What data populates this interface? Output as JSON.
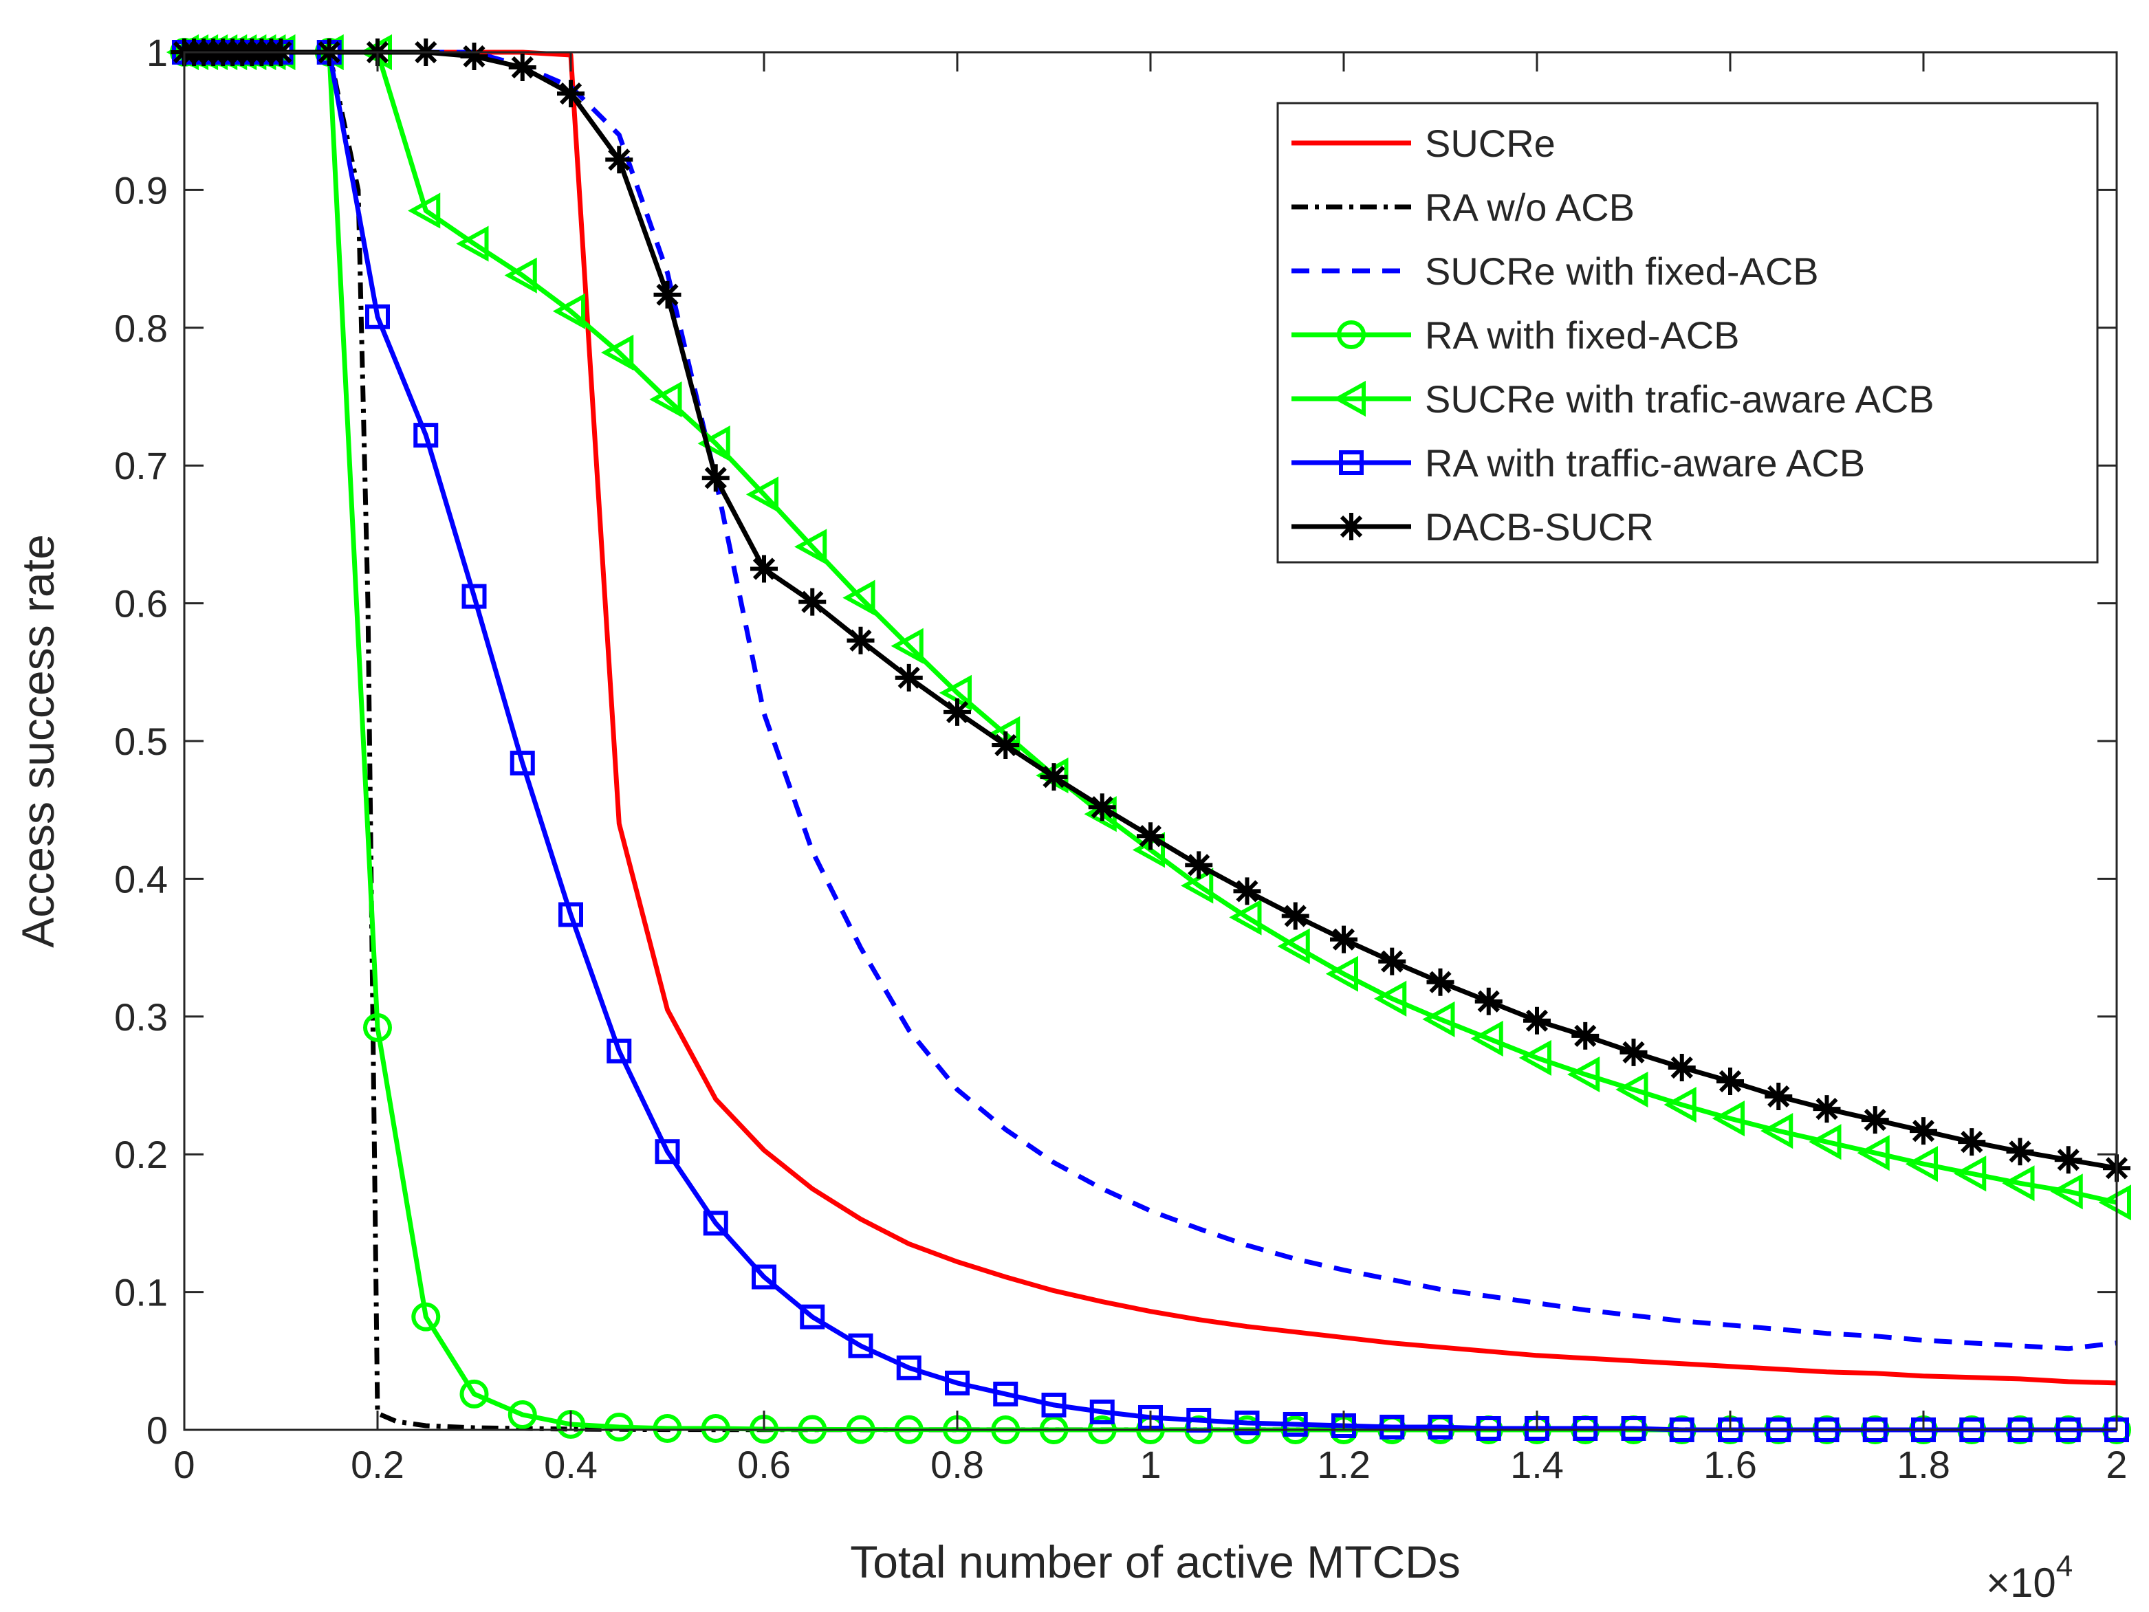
{
  "chart_data": {
    "type": "line",
    "title": "",
    "xlabel": "Total number of active MTCDs",
    "ylabel": "Access success rate",
    "x_exponent_label": "×10",
    "x_exponent": "4",
    "xlim": [
      0,
      2
    ],
    "ylim": [
      0,
      1
    ],
    "xticks": [
      0,
      0.2,
      0.4,
      0.6,
      0.8,
      1,
      1.2,
      1.4,
      1.6,
      1.8,
      2
    ],
    "xtick_labels": [
      "0",
      "0.2",
      "0.4",
      "0.6",
      "0.8",
      "1",
      "1.2",
      "1.4",
      "1.6",
      "1.8",
      "2"
    ],
    "yticks": [
      0,
      0.1,
      0.2,
      0.3,
      0.4,
      0.5,
      0.6,
      0.7,
      0.8,
      0.9,
      1
    ],
    "ytick_labels": [
      "0",
      "0.1",
      "0.2",
      "0.3",
      "0.4",
      "0.5",
      "0.6",
      "0.7",
      "0.8",
      "0.9",
      "1"
    ],
    "grid": false,
    "legend_position": "top-right",
    "series": [
      {
        "name": "SUCRe",
        "color": "#ff0000",
        "dash": "solid",
        "marker": "none",
        "x": [
          0,
          0.05,
          0.1,
          0.15,
          0.2,
          0.25,
          0.3,
          0.35,
          0.4,
          0.45,
          0.5,
          0.55,
          0.6,
          0.65,
          0.7,
          0.75,
          0.8,
          0.85,
          0.9,
          0.95,
          1.0,
          1.05,
          1.1,
          1.15,
          1.2,
          1.25,
          1.3,
          1.35,
          1.4,
          1.45,
          1.5,
          1.55,
          1.6,
          1.65,
          1.7,
          1.75,
          1.8,
          1.85,
          1.9,
          1.95,
          2.0
        ],
        "y": [
          1,
          1,
          1,
          1,
          1,
          1,
          1,
          1,
          0.998,
          0.44,
          0.305,
          0.24,
          0.203,
          0.175,
          0.153,
          0.135,
          0.122,
          0.111,
          0.101,
          0.093,
          0.086,
          0.08,
          0.075,
          0.071,
          0.067,
          0.063,
          0.06,
          0.057,
          0.054,
          0.052,
          0.05,
          0.048,
          0.046,
          0.044,
          0.042,
          0.041,
          0.039,
          0.038,
          0.037,
          0.035,
          0.034
        ]
      },
      {
        "name": "RA w/o ACB",
        "color": "#000000",
        "dash": "dashdot",
        "marker": "none",
        "x": [
          0,
          0.05,
          0.1,
          0.15,
          0.18,
          0.19,
          0.2,
          0.22,
          0.25,
          0.3,
          0.35,
          0.4,
          0.5,
          0.6,
          2.0
        ],
        "y": [
          1,
          1,
          1,
          1,
          0.9,
          0.6,
          0.012,
          0.006,
          0.003,
          0.0015,
          0.001,
          0.0005,
          0.0002,
          0.0001,
          0
        ]
      },
      {
        "name": "SUCRe with fixed-ACB",
        "color": "#0000ff",
        "dash": "dashed",
        "marker": "none",
        "x": [
          0,
          0.05,
          0.1,
          0.15,
          0.2,
          0.25,
          0.3,
          0.35,
          0.4,
          0.45,
          0.5,
          0.55,
          0.6,
          0.65,
          0.7,
          0.75,
          0.8,
          0.85,
          0.9,
          0.95,
          1.0,
          1.05,
          1.1,
          1.15,
          1.2,
          1.25,
          1.3,
          1.35,
          1.4,
          1.45,
          1.5,
          1.55,
          1.6,
          1.65,
          1.7,
          1.75,
          1.8,
          1.85,
          1.9,
          1.95,
          2.0
        ],
        "y": [
          1,
          1,
          1,
          1,
          1,
          1,
          1,
          0.99,
          0.975,
          0.94,
          0.84,
          0.69,
          0.52,
          0.42,
          0.35,
          0.29,
          0.247,
          0.218,
          0.194,
          0.175,
          0.159,
          0.146,
          0.134,
          0.124,
          0.116,
          0.109,
          0.102,
          0.097,
          0.092,
          0.087,
          0.083,
          0.079,
          0.076,
          0.073,
          0.07,
          0.068,
          0.065,
          0.063,
          0.061,
          0.059,
          0.063
        ]
      },
      {
        "name": "RA with fixed-ACB",
        "color": "#00ff00",
        "dash": "solid",
        "marker": "circle",
        "x": [
          0,
          0.01,
          0.02,
          0.03,
          0.04,
          0.05,
          0.06,
          0.07,
          0.08,
          0.09,
          0.1,
          0.15,
          0.2,
          0.25,
          0.3,
          0.35,
          0.4,
          0.45,
          0.5,
          0.55,
          0.6,
          0.65,
          0.7,
          0.75,
          0.8,
          0.85,
          0.9,
          0.95,
          1.0,
          1.05,
          1.1,
          1.15,
          1.2,
          1.25,
          1.3,
          1.35,
          1.4,
          1.45,
          1.5,
          1.55,
          1.6,
          1.65,
          1.7,
          1.75,
          1.8,
          1.85,
          1.9,
          1.95,
          2.0
        ],
        "y": [
          1,
          1,
          1,
          1,
          1,
          1,
          1,
          1,
          1,
          1,
          1,
          1,
          0.292,
          0.082,
          0.026,
          0.011,
          0.004,
          0.002,
          0.001,
          0.001,
          0.0005,
          0.0003,
          0.0002,
          0.0001,
          0.0001,
          0,
          0,
          0,
          0,
          0,
          0,
          0,
          0,
          0,
          0,
          0,
          0,
          0,
          0,
          0,
          0,
          0,
          0,
          0,
          0,
          0,
          0,
          0,
          0
        ]
      },
      {
        "name": "SUCRe with trafic-aware ACB",
        "color": "#00ff00",
        "dash": "solid",
        "marker": "triangle-left",
        "x": [
          0,
          0.01,
          0.02,
          0.03,
          0.04,
          0.05,
          0.06,
          0.07,
          0.08,
          0.09,
          0.1,
          0.15,
          0.2,
          0.25,
          0.3,
          0.35,
          0.4,
          0.45,
          0.5,
          0.55,
          0.6,
          0.65,
          0.7,
          0.75,
          0.8,
          0.85,
          0.9,
          0.95,
          1.0,
          1.05,
          1.1,
          1.15,
          1.2,
          1.25,
          1.3,
          1.35,
          1.4,
          1.45,
          1.5,
          1.55,
          1.6,
          1.65,
          1.7,
          1.75,
          1.8,
          1.85,
          1.9,
          1.95,
          2.0
        ],
        "y": [
          1,
          1,
          1,
          1,
          1,
          1,
          1,
          1,
          1,
          1,
          1,
          1,
          1,
          0.885,
          0.861,
          0.838,
          0.812,
          0.782,
          0.748,
          0.716,
          0.679,
          0.641,
          0.604,
          0.569,
          0.535,
          0.505,
          0.475,
          0.447,
          0.421,
          0.395,
          0.372,
          0.351,
          0.331,
          0.313,
          0.298,
          0.284,
          0.27,
          0.258,
          0.247,
          0.236,
          0.226,
          0.217,
          0.209,
          0.201,
          0.193,
          0.186,
          0.179,
          0.173,
          0.165
        ]
      },
      {
        "name": "RA with traffic-aware ACB",
        "color": "#0000ff",
        "dash": "solid",
        "marker": "square",
        "x": [
          0,
          0.01,
          0.02,
          0.03,
          0.04,
          0.05,
          0.06,
          0.07,
          0.08,
          0.09,
          0.1,
          0.15,
          0.2,
          0.25,
          0.3,
          0.35,
          0.4,
          0.45,
          0.5,
          0.55,
          0.6,
          0.65,
          0.7,
          0.75,
          0.8,
          0.85,
          0.9,
          0.95,
          1.0,
          1.05,
          1.1,
          1.15,
          1.2,
          1.25,
          1.3,
          1.35,
          1.4,
          1.45,
          1.5,
          1.55,
          1.6,
          1.65,
          1.7,
          1.75,
          1.8,
          1.85,
          1.9,
          1.95,
          2.0
        ],
        "y": [
          1,
          1,
          1,
          1,
          1,
          1,
          1,
          1,
          1,
          1,
          1,
          1,
          0.808,
          0.722,
          0.605,
          0.484,
          0.374,
          0.275,
          0.202,
          0.15,
          0.111,
          0.082,
          0.061,
          0.045,
          0.034,
          0.026,
          0.018,
          0.013,
          0.009,
          0.007,
          0.005,
          0.004,
          0.003,
          0.002,
          0.002,
          0.001,
          0.001,
          0.001,
          0.001,
          0,
          0,
          0,
          0,
          0,
          0,
          0,
          0,
          0,
          0
        ]
      },
      {
        "name": "DACB-SUCR",
        "color": "#000000",
        "dash": "solid",
        "marker": "asterisk",
        "x": [
          0,
          0.01,
          0.02,
          0.03,
          0.04,
          0.05,
          0.06,
          0.07,
          0.08,
          0.09,
          0.1,
          0.15,
          0.2,
          0.25,
          0.3,
          0.35,
          0.4,
          0.45,
          0.5,
          0.55,
          0.6,
          0.65,
          0.7,
          0.75,
          0.8,
          0.85,
          0.9,
          0.95,
          1.0,
          1.05,
          1.1,
          1.15,
          1.2,
          1.25,
          1.3,
          1.35,
          1.4,
          1.45,
          1.5,
          1.55,
          1.6,
          1.65,
          1.7,
          1.75,
          1.8,
          1.85,
          1.9,
          1.95,
          2.0
        ],
        "y": [
          1,
          1,
          1,
          1,
          1,
          1,
          1,
          1,
          1,
          1,
          1,
          1,
          1,
          1,
          0.997,
          0.989,
          0.97,
          0.922,
          0.824,
          0.691,
          0.625,
          0.601,
          0.573,
          0.546,
          0.521,
          0.497,
          0.474,
          0.452,
          0.431,
          0.41,
          0.391,
          0.373,
          0.356,
          0.34,
          0.325,
          0.311,
          0.297,
          0.286,
          0.274,
          0.263,
          0.253,
          0.242,
          0.233,
          0.225,
          0.217,
          0.209,
          0.202,
          0.196,
          0.19
        ]
      }
    ]
  }
}
